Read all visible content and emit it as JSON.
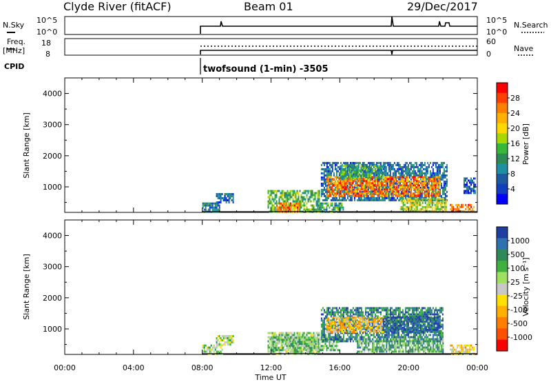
{
  "header": {
    "title": "Clyde River (fitACF)",
    "beam": "Beam 01",
    "date": "29/Dec/2017"
  },
  "top_panels": {
    "nsky_label": "N.Sky",
    "nsky_ticks": [
      "10^5",
      "10^0"
    ],
    "nsearch_label": "N.Search",
    "nsearch_ticks": [
      "10^5",
      "10^0"
    ],
    "freq_label_line1": "Freq.",
    "freq_label_line2": "[MHz]",
    "freq_ticks": [
      "18",
      "8"
    ],
    "nave_label": "Nave",
    "nave_ticks": [
      "60",
      "0"
    ],
    "cpid_label": "CPID",
    "mode_text": "twofsound (1-min) -3505"
  },
  "axes": {
    "ylabel": "Slant Range [km]",
    "xlabel": "Time UT",
    "yticks": [
      "4000",
      "3000",
      "2000",
      "1000"
    ],
    "xticks": [
      "00:00",
      "04:00",
      "08:00",
      "12:00",
      "16:00",
      "20:00",
      "00:00"
    ]
  },
  "colorbars": {
    "power": {
      "label": "Power [dB]",
      "ticks": [
        "28",
        "24",
        "20",
        "16",
        "12",
        "8",
        "4"
      ],
      "colors": [
        "#ff0000",
        "#ff4000",
        "#ff8000",
        "#ffb000",
        "#ffd800",
        "#a8d800",
        "#38b838",
        "#2e8b57",
        "#1e90a0",
        "#1e5aa0",
        "#1040c0",
        "#0000ff"
      ]
    },
    "velocity": {
      "label": "Velocity [m s⁻¹]",
      "ticks": [
        "1000",
        "500",
        "100",
        "25",
        "-25",
        "-100",
        "-500",
        "-1000"
      ],
      "colors": [
        "#1f3fa0",
        "#2e70b0",
        "#2e8b57",
        "#40b040",
        "#a0e060",
        "#c8c8c8",
        "#ffe000",
        "#ffb000",
        "#ff8000",
        "#ff5000",
        "#ff0000"
      ]
    }
  },
  "chart_data": [
    {
      "type": "heatmap",
      "name": "Power",
      "xlabel": "Time UT",
      "ylabel": "Slant Range [km]",
      "xlim_hours": [
        0,
        24
      ],
      "ylim_km": [
        180,
        4500
      ],
      "colorbar_label": "Power [dB]",
      "colorbar_range": [
        0,
        32
      ],
      "data_coverage_start_hour": 8.0,
      "regions": [
        {
          "t0": 8.0,
          "t1": 9.0,
          "r0": 200,
          "r1": 500,
          "value": 8
        },
        {
          "t0": 8.8,
          "t1": 9.8,
          "r0": 500,
          "r1": 800,
          "value": 6
        },
        {
          "t0": 11.8,
          "t1": 14.8,
          "r0": 200,
          "r1": 900,
          "value": 14
        },
        {
          "t0": 12.3,
          "t1": 13.6,
          "r0": 200,
          "r1": 500,
          "value": 26
        },
        {
          "t0": 14.8,
          "t1": 16.2,
          "r0": 200,
          "r1": 500,
          "value": 12
        },
        {
          "t0": 14.9,
          "t1": 22.2,
          "r0": 600,
          "r1": 1800,
          "value": 7
        },
        {
          "t0": 15.2,
          "t1": 21.8,
          "r0": 750,
          "r1": 1350,
          "value": 26
        },
        {
          "t0": 16.0,
          "t1": 18.5,
          "r0": 1300,
          "r1": 1700,
          "value": 12
        },
        {
          "t0": 19.5,
          "t1": 22.2,
          "r0": 200,
          "r1": 650,
          "value": 18
        },
        {
          "t0": 22.4,
          "t1": 23.8,
          "r0": 200,
          "r1": 450,
          "value": 28
        },
        {
          "t0": 23.2,
          "t1": 23.9,
          "r0": 800,
          "r1": 1300,
          "value": 5
        }
      ]
    },
    {
      "type": "heatmap",
      "name": "Velocity",
      "xlabel": "Time UT",
      "ylabel": "Slant Range [km]",
      "xlim_hours": [
        0,
        24
      ],
      "ylim_km": [
        180,
        4500
      ],
      "colorbar_label": "Velocity [m s⁻¹]",
      "colorbar_range": [
        -1000,
        1000
      ],
      "data_coverage_start_hour": 8.0,
      "regions": [
        {
          "t0": 8.0,
          "t1": 9.2,
          "r0": 200,
          "r1": 500,
          "value": 200
        },
        {
          "t0": 8.8,
          "t1": 9.8,
          "r0": 500,
          "r1": 800,
          "value": 150
        },
        {
          "t0": 11.8,
          "t1": 14.8,
          "r0": 200,
          "r1": 900,
          "value": 200
        },
        {
          "t0": 12.0,
          "t1": 16.0,
          "r0": 350,
          "r1": 750,
          "value": 300
        },
        {
          "t0": 14.9,
          "t1": 22.0,
          "r0": 600,
          "r1": 1700,
          "value": 700
        },
        {
          "t0": 15.2,
          "t1": 18.5,
          "r0": 900,
          "r1": 1400,
          "value": -300
        },
        {
          "t0": 18.5,
          "t1": 21.8,
          "r0": 900,
          "r1": 1400,
          "value": 900
        },
        {
          "t0": 17.0,
          "t1": 22.0,
          "r0": 300,
          "r1": 700,
          "value": 400
        },
        {
          "t0": 22.4,
          "t1": 23.8,
          "r0": 200,
          "r1": 500,
          "value": -150
        }
      ]
    }
  ]
}
